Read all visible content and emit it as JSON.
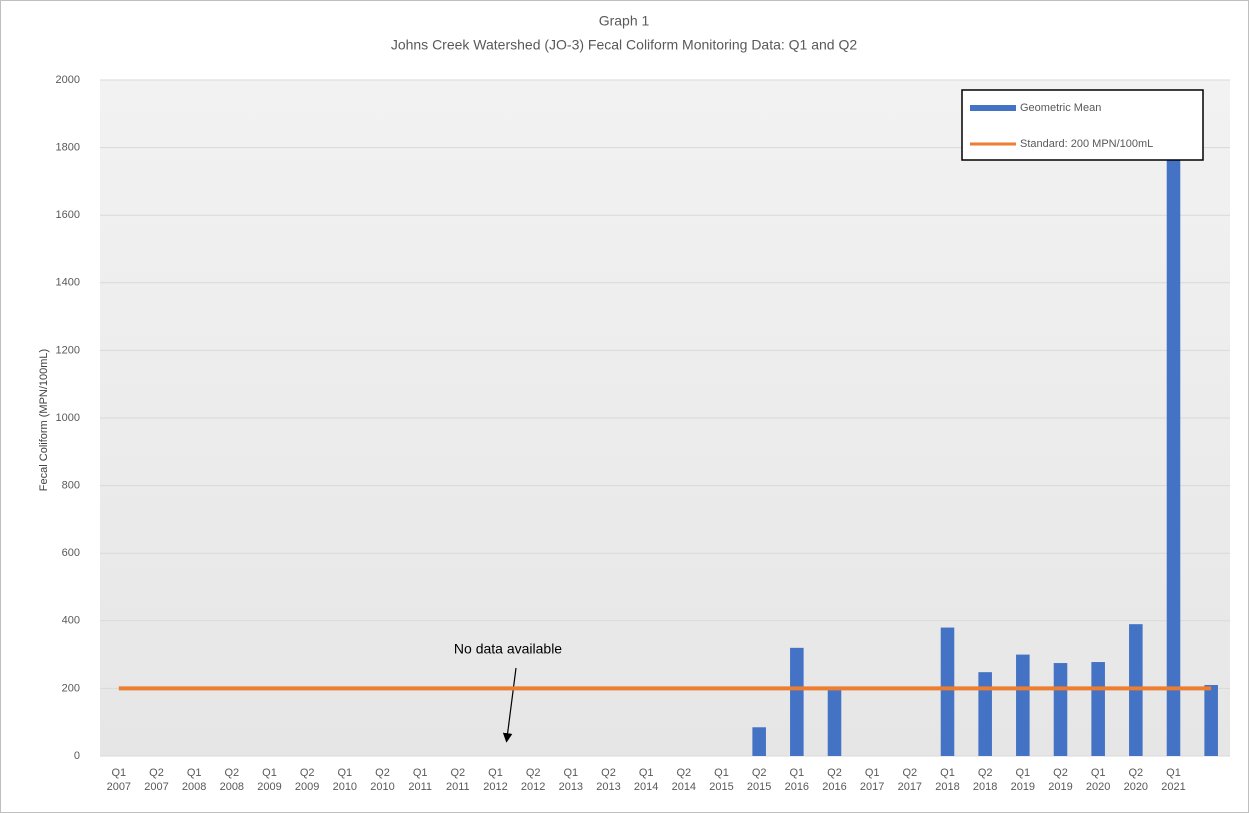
{
  "chart_data": {
    "type": "bar",
    "title": "Graph 1",
    "subtitle": "Johns Creek Watershed (JO-3) Fecal Coliform Monitoring Data: Q1 and Q2",
    "y_label": "Fecal Coliform (MPN/100mL)",
    "annotation": "No data available",
    "categories": [
      "Q1 2007",
      "Q2 2007",
      "Q1 2008",
      "Q2 2008",
      "Q1 2009",
      "Q2 2009",
      "Q1 2010",
      "Q2 2010",
      "Q1 2011",
      "Q2 2011",
      "Q1 2012",
      "Q2 2012",
      "Q1 2013",
      "Q2 2013",
      "Q1 2014",
      "Q2 2014",
      "Q1 2015",
      "Q2 2015",
      "Q1 2016",
      "Q2 2016",
      "Q1 2017",
      "Q2 2017",
      "Q1 2018",
      "Q2 2018",
      "Q1 2019",
      "Q2 2019",
      "Q1 2020",
      "Q2 2020",
      "Q1 2021",
      null
    ],
    "series": [
      {
        "name": "Geometric Mean",
        "type": "bar",
        "color": "#4472c4",
        "values": [
          null,
          null,
          null,
          null,
          null,
          null,
          null,
          null,
          null,
          null,
          null,
          null,
          null,
          null,
          null,
          null,
          null,
          85,
          320,
          195,
          null,
          null,
          380,
          248,
          300,
          275,
          278,
          390,
          1780,
          210
        ]
      },
      {
        "name": "Standard: 200 MPN/100mL",
        "type": "line",
        "color": "#ed7d31",
        "values": [
          200,
          200,
          200,
          200,
          200,
          200,
          200,
          200,
          200,
          200,
          200,
          200,
          200,
          200,
          200,
          200,
          200,
          200,
          200,
          200,
          200,
          200,
          200,
          200,
          200,
          200,
          200,
          200,
          200,
          200
        ]
      }
    ],
    "ylim": [
      0,
      2000
    ],
    "yticks": [
      0,
      200,
      400,
      600,
      800,
      1000,
      1200,
      1400,
      1600,
      1800,
      2000
    ],
    "grid": true,
    "legend": "top-right"
  }
}
